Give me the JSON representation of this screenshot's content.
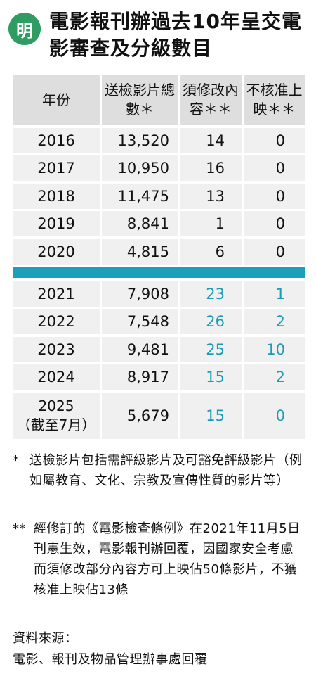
{
  "logo": "明",
  "title": "電影報刊辦過去10年呈交電影審查及分級數目",
  "chart_data": {
    "type": "table",
    "columns": [
      "年份",
      "送檢影片總數＊",
      "須修改內容＊＊",
      "不核准上映＊＊"
    ],
    "rows": [
      {
        "year": "2016",
        "total": "13,520",
        "modified": "14",
        "rejected": "0"
      },
      {
        "year": "2017",
        "total": "10,950",
        "modified": "16",
        "rejected": "0"
      },
      {
        "year": "2018",
        "total": "11,475",
        "modified": "13",
        "rejected": "0"
      },
      {
        "year": "2019",
        "total": "8,841",
        "modified": "1",
        "rejected": "0"
      },
      {
        "year": "2020",
        "total": "4,815",
        "modified": "6",
        "rejected": "0"
      },
      {
        "year": "2021",
        "total": "7,908",
        "modified": "23",
        "rejected": "1"
      },
      {
        "year": "2022",
        "total": "7,548",
        "modified": "26",
        "rejected": "2"
      },
      {
        "year": "2023",
        "total": "9,481",
        "modified": "25",
        "rejected": "10"
      },
      {
        "year": "2024",
        "total": "8,917",
        "modified": "15",
        "rejected": "2"
      },
      {
        "year": "2025",
        "year_note": "（截至7月）",
        "total": "5,679",
        "modified": "15",
        "rejected": "0"
      }
    ],
    "highlight_color": "#1c9bb6",
    "divider_color": "#1aa0b8"
  },
  "notes": {
    "n1_mark": "*",
    "n1_text": "送檢影片包括需評級影片及可豁免評級影片（例如屬教育、文化、宗教及宣傳性質的影片等）",
    "n2_mark": "**",
    "n2_text": "經修訂的《電影檢查條例》在2021年11月5日刊憲生效，電影報刊辦回覆，因國家安全考慮而須修改部分內容方可上映佔50條影片，不獲核准上映佔13條",
    "source_label": "資料來源：",
    "source_text": "電影、報刊及物品管理辦事處回覆"
  }
}
